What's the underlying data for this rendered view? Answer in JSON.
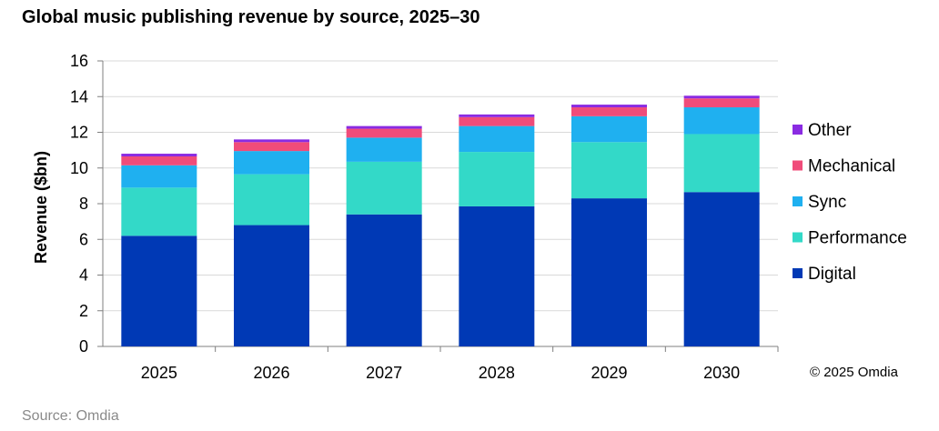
{
  "title": "Global music publishing revenue by source, 2025–30",
  "copyright": "© 2025 Omdia",
  "source": "Source: Omdia",
  "chart_data": {
    "type": "bar",
    "stacked": true,
    "categories": [
      "2025",
      "2026",
      "2027",
      "2028",
      "2029",
      "2030"
    ],
    "series": [
      {
        "name": "Digital",
        "color": "#0039b5",
        "values": [
          6.2,
          6.8,
          7.4,
          7.85,
          8.3,
          8.65
        ]
      },
      {
        "name": "Performance",
        "color": "#33d9c8",
        "values": [
          2.7,
          2.85,
          2.95,
          3.05,
          3.15,
          3.25
        ]
      },
      {
        "name": "Sync",
        "color": "#1fb0f0",
        "values": [
          1.25,
          1.3,
          1.35,
          1.45,
          1.45,
          1.5
        ]
      },
      {
        "name": "Mechanical",
        "color": "#f04c7a",
        "values": [
          0.5,
          0.5,
          0.5,
          0.5,
          0.5,
          0.5
        ]
      },
      {
        "name": "Other",
        "color": "#8a2be2",
        "values": [
          0.15,
          0.15,
          0.15,
          0.15,
          0.15,
          0.15
        ]
      }
    ],
    "legend_order": [
      "Other",
      "Mechanical",
      "Sync",
      "Performance",
      "Digital"
    ],
    "ylabel": "Revenue ($bn)",
    "xlabel": "",
    "ylim": [
      0,
      16
    ],
    "yticks": [
      0,
      2,
      4,
      6,
      8,
      10,
      12,
      14,
      16
    ],
    "grid": true,
    "legend_position": "right"
  }
}
